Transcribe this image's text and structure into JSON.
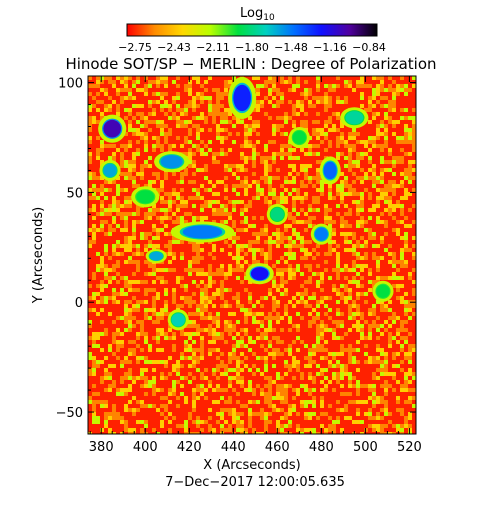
{
  "chart_data": {
    "type": "heatmap",
    "title": "Hinode SOT/SP − MERLIN : Degree of Polarization",
    "xlabel": "X (Arcseconds)",
    "ylabel": "Y (Arcseconds)",
    "timestamp": "7−Dec−2017 12:00:05.635",
    "xlim": [
      374,
      523
    ],
    "ylim": [
      -60,
      103
    ],
    "x_ticks": [
      "380",
      "400",
      "420",
      "440",
      "460",
      "480",
      "500",
      "520"
    ],
    "y_ticks": [
      "100",
      "50",
      "0",
      "−50"
    ],
    "colorbar": {
      "title_base": "Log",
      "title_sub": "10",
      "ticks": [
        "−2.75",
        "−2.43",
        "−2.11",
        "−1.80",
        "−1.48",
        "−1.16",
        "−0.84"
      ],
      "range": [
        -2.75,
        -0.84
      ],
      "colors": [
        "#ff0000",
        "#ff8c00",
        "#ffd800",
        "#b8ff00",
        "#00e040",
        "#00d0c0",
        "#0070ff",
        "#1010ff",
        "#5000a0",
        "#000000"
      ]
    },
    "background_level": -2.7,
    "high_polarization_patches": [
      {
        "x": 385,
        "y": 79,
        "rx": 4,
        "ry": 4,
        "value": -1.1
      },
      {
        "x": 452,
        "y": 13,
        "rx": 4,
        "ry": 3,
        "value": -1.25
      },
      {
        "x": 444,
        "y": 93,
        "rx": 4,
        "ry": 6,
        "value": -1.3
      },
      {
        "x": 426,
        "y": 32,
        "rx": 9,
        "ry": 3,
        "value": -1.5
      },
      {
        "x": 480,
        "y": 31,
        "rx": 3,
        "ry": 3,
        "value": -1.5
      },
      {
        "x": 484,
        "y": 60,
        "rx": 3,
        "ry": 4,
        "value": -1.45
      },
      {
        "x": 412,
        "y": 64,
        "rx": 5,
        "ry": 3,
        "value": -1.55
      },
      {
        "x": 405,
        "y": 21,
        "rx": 3,
        "ry": 2,
        "value": -1.6
      },
      {
        "x": 384,
        "y": 60,
        "rx": 3,
        "ry": 3,
        "value": -1.6
      },
      {
        "x": 415,
        "y": -8,
        "rx": 3,
        "ry": 3,
        "value": -1.7
      },
      {
        "x": 495,
        "y": 84,
        "rx": 4,
        "ry": 3,
        "value": -1.75
      },
      {
        "x": 460,
        "y": 40,
        "rx": 3,
        "ry": 3,
        "value": -1.8
      },
      {
        "x": 400,
        "y": 48,
        "rx": 4,
        "ry": 3,
        "value": -1.9
      },
      {
        "x": 470,
        "y": 75,
        "rx": 3,
        "ry": 3,
        "value": -1.9
      },
      {
        "x": 508,
        "y": 5,
        "rx": 3,
        "ry": 3,
        "value": -1.9
      }
    ]
  }
}
